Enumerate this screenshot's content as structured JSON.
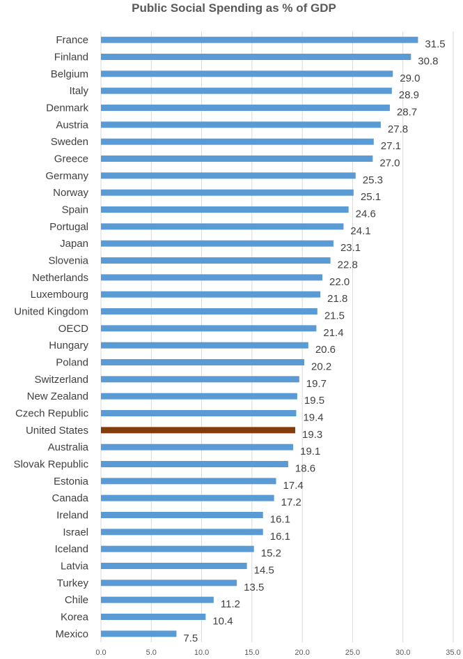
{
  "chart_data": {
    "type": "bar",
    "orientation": "horizontal",
    "title": "Public Social Spending as % of GDP",
    "xlabel": "",
    "ylabel": "",
    "xlim": [
      0,
      35
    ],
    "ticks": [
      "0.0",
      "5.0",
      "10.0",
      "15.0",
      "20.0",
      "25.0",
      "30.0",
      "35.0"
    ],
    "grid": true,
    "colors": {
      "default": "#5B9BD5",
      "highlight": "#843C0C"
    },
    "highlight": "United States",
    "categories": [
      "France",
      "Finland",
      "Belgium",
      "Italy",
      "Denmark",
      "Austria",
      "Sweden",
      "Greece",
      "Germany",
      "Norway",
      "Spain",
      "Portugal",
      "Japan",
      "Slovenia",
      "Netherlands",
      "Luxembourg",
      "United Kingdom",
      "OECD",
      "Hungary",
      "Poland",
      "Switzerland",
      "New Zealand",
      "Czech Republic",
      "United States",
      "Australia",
      "Slovak Republic",
      "Estonia",
      "Canada",
      "Ireland",
      "Israel",
      "Iceland",
      "Latvia",
      "Turkey",
      "Chile",
      "Korea",
      "Mexico"
    ],
    "values": [
      31.5,
      30.8,
      29.0,
      28.9,
      28.7,
      27.8,
      27.1,
      27.0,
      25.3,
      25.1,
      24.6,
      24.1,
      23.1,
      22.8,
      22.0,
      21.8,
      21.5,
      21.4,
      20.6,
      20.2,
      19.7,
      19.5,
      19.4,
      19.3,
      19.1,
      18.6,
      17.4,
      17.2,
      16.1,
      16.1,
      15.2,
      14.5,
      13.5,
      11.2,
      10.4,
      7.5
    ],
    "labels": [
      "31.5",
      "30.8",
      "29.0",
      "28.9",
      "28.7",
      "27.8",
      "27.1",
      "27.0",
      "25.3",
      "25.1",
      "24.6",
      "24.1",
      "23.1",
      "22.8",
      "22.0",
      "21.8",
      "21.5",
      "21.4",
      "20.6",
      "20.2",
      "19.7",
      "19.5",
      "19.4",
      "19.3",
      "19.1",
      "18.6",
      "17.4",
      "17.2",
      "16.1",
      "16.1",
      "15.2",
      "14.5",
      "13.5",
      "11.2",
      "10.4",
      "7.5"
    ]
  }
}
